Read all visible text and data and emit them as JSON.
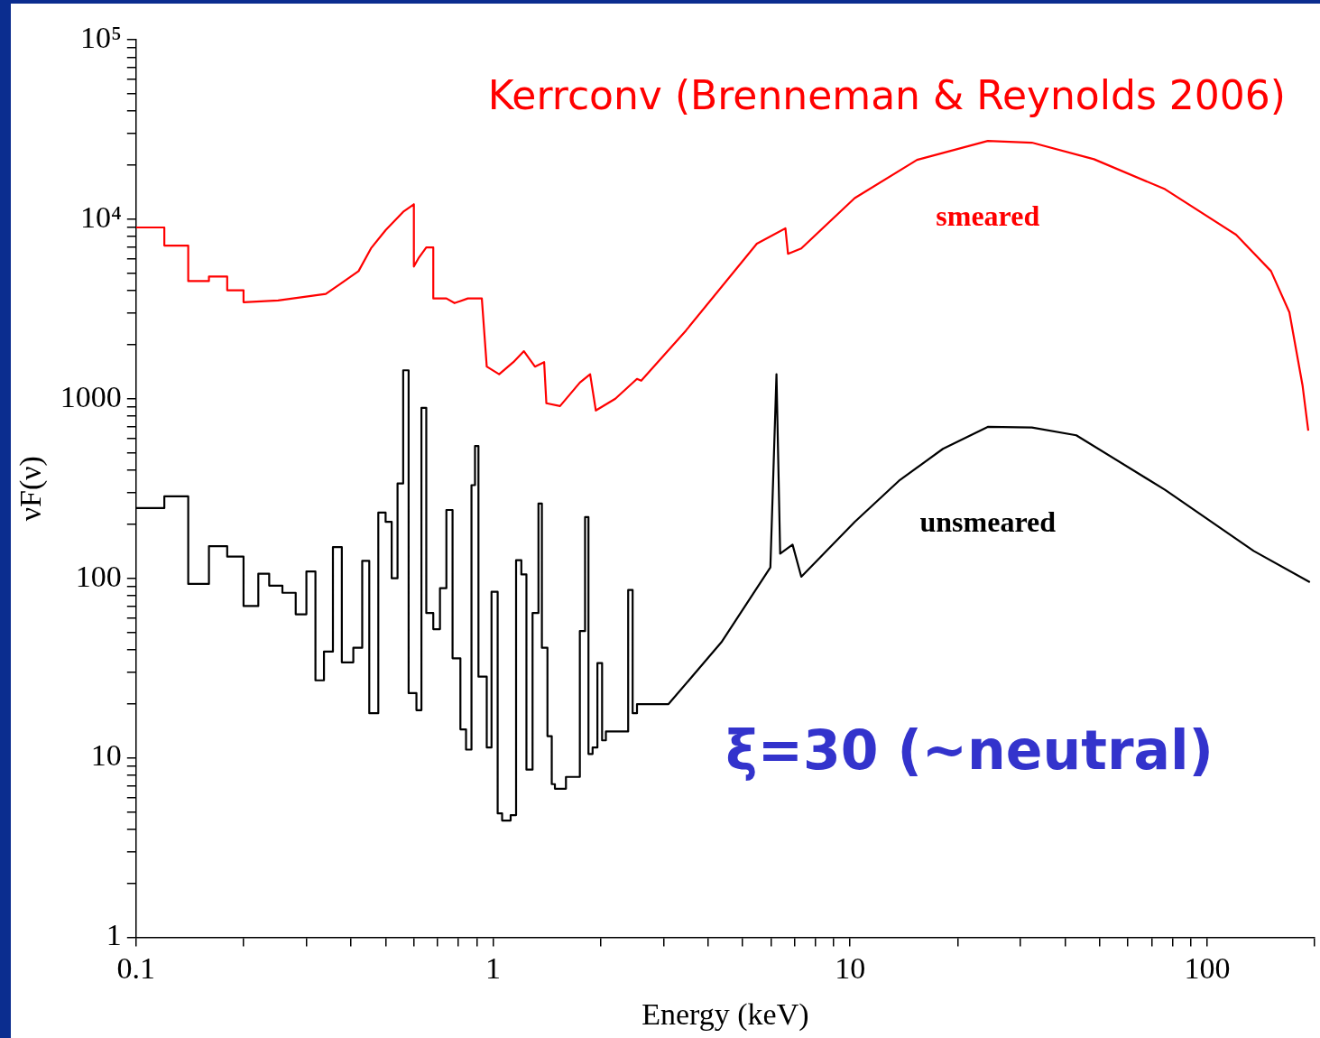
{
  "chart_data": {
    "type": "line",
    "title": "Kerrconv (Brenneman & Reynolds 2006)",
    "xlabel": "Energy (keV)",
    "ylabel": "νF(ν)",
    "annotations": [
      "ξ=30 (~neutral)"
    ],
    "log": "xy",
    "grid": false,
    "legend": false,
    "marker": "none",
    "line_style": "solid",
    "xlim": [
      0.1,
      200
    ],
    "ylim": [
      1,
      100000
    ],
    "xticks": [
      0.1,
      {
        "value": 0.2,
        "label": null
      },
      {
        "value": 0.3,
        "label": null
      },
      {
        "value": 0.4,
        "label": null
      },
      {
        "value": 0.5,
        "label": null
      },
      {
        "value": 0.6,
        "label": null
      },
      {
        "value": 0.7,
        "label": null
      },
      {
        "value": 0.8,
        "label": null
      },
      {
        "value": 0.9,
        "label": null
      },
      1,
      {
        "value": 2,
        "label": null
      },
      {
        "value": 3,
        "label": null
      },
      {
        "value": 4,
        "label": null
      },
      {
        "value": 5,
        "label": null
      },
      {
        "value": 6,
        "label": null
      },
      {
        "value": 7,
        "label": null
      },
      {
        "value": 8,
        "label": null
      },
      {
        "value": 9,
        "label": null
      },
      10,
      {
        "value": 20,
        "label": null
      },
      {
        "value": 30,
        "label": null
      },
      {
        "value": 40,
        "label": null
      },
      {
        "value": 50,
        "label": null
      },
      {
        "value": 60,
        "label": null
      },
      {
        "value": 70,
        "label": null
      },
      {
        "value": 80,
        "label": null
      },
      {
        "value": 90,
        "label": null
      },
      100,
      {
        "value": 200,
        "label": null
      }
    ],
    "yticks": [
      1,
      {
        "value": 2,
        "label": null
      },
      {
        "value": 3,
        "label": null
      },
      {
        "value": 4,
        "label": null
      },
      {
        "value": 5,
        "label": null
      },
      {
        "value": 6,
        "label": null
      },
      {
        "value": 7,
        "label": null
      },
      {
        "value": 8,
        "label": null
      },
      {
        "value": 9,
        "label": null
      },
      10,
      {
        "value": 20,
        "label": null
      },
      {
        "value": 30,
        "label": null
      },
      {
        "value": 40,
        "label": null
      },
      {
        "value": 50,
        "label": null
      },
      {
        "value": 60,
        "label": null
      },
      {
        "value": 70,
        "label": null
      },
      {
        "value": 80,
        "label": null
      },
      {
        "value": 90,
        "label": null
      },
      100,
      {
        "value": 200,
        "label": null
      },
      {
        "value": 300,
        "label": null
      },
      {
        "value": 400,
        "label": null
      },
      {
        "value": 500,
        "label": null
      },
      {
        "value": 600,
        "label": null
      },
      {
        "value": 700,
        "label": null
      },
      {
        "value": 800,
        "label": null
      },
      {
        "value": 900,
        "label": null
      },
      1000,
      {
        "value": 2000,
        "label": null
      },
      {
        "value": 3000,
        "label": null
      },
      {
        "value": 4000,
        "label": null
      },
      {
        "value": 5000,
        "label": null
      },
      {
        "value": 6000,
        "label": null
      },
      {
        "value": 7000,
        "label": null
      },
      {
        "value": 8000,
        "label": null
      },
      {
        "value": 9000,
        "label": null
      },
      {
        "value": 10000,
        "label": "10⁴"
      },
      {
        "value": 20000,
        "label": null
      },
      {
        "value": 30000,
        "label": null
      },
      {
        "value": 40000,
        "label": null
      },
      {
        "value": 50000,
        "label": null
      },
      {
        "value": 60000,
        "label": null
      },
      {
        "value": 70000,
        "label": null
      },
      {
        "value": 80000,
        "label": null
      },
      {
        "value": 90000,
        "label": null
      },
      {
        "value": 100000,
        "label": "10⁵"
      }
    ],
    "series": [
      {
        "name": "smeared",
        "color": "#ff0000",
        "x": [
          0.1,
          0.12,
          0.12,
          0.14,
          0.14,
          0.16,
          0.16,
          0.18,
          0.18,
          0.2,
          0.2,
          0.25,
          0.34,
          0.37,
          0.42,
          0.455,
          0.5,
          0.56,
          0.6,
          0.6,
          0.62,
          0.65,
          0.68,
          0.68,
          0.74,
          0.78,
          0.85,
          0.93,
          0.96,
          1.04,
          1.14,
          1.22,
          1.31,
          1.39,
          1.41,
          1.54,
          1.75,
          1.87,
          1.94,
          2.2,
          2.53,
          2.6,
          3.47,
          5.48,
          6.59,
          6.7,
          7.3,
          10.3,
          15.4,
          24.3,
          32.3,
          48.2,
          76.2,
          120.5,
          151,
          170,
          185,
          192
        ],
        "values": [
          9000,
          9000,
          7130,
          7130,
          4520,
          4520,
          4790,
          4790,
          4020,
          4020,
          3450,
          3530,
          3840,
          4310,
          5140,
          6880,
          8690,
          11000,
          12100,
          5450,
          6120,
          6960,
          6960,
          3620,
          3620,
          3410,
          3620,
          3620,
          1510,
          1370,
          1600,
          1840,
          1510,
          1600,
          944,
          910,
          1230,
          1370,
          860,
          1000,
          1290,
          1260,
          2400,
          7300,
          8900,
          6420,
          6880,
          13100,
          21400,
          27300,
          26700,
          21600,
          14700,
          8200,
          5140,
          3030,
          1190,
          664
        ]
      },
      {
        "name": "unsmeared",
        "color": "#000000",
        "x": [
          0.1,
          0.12,
          0.12,
          0.14,
          0.14,
          0.16,
          0.16,
          0.18,
          0.18,
          0.2,
          0.2,
          0.22,
          0.22,
          0.236,
          0.236,
          0.257,
          0.257,
          0.28,
          0.28,
          0.3,
          0.3,
          0.318,
          0.318,
          0.336,
          0.336,
          0.356,
          0.356,
          0.377,
          0.377,
          0.406,
          0.406,
          0.43,
          0.43,
          0.45,
          0.45,
          0.477,
          0.477,
          0.5,
          0.5,
          0.52,
          0.52,
          0.54,
          0.54,
          0.56,
          0.56,
          0.58,
          0.58,
          0.61,
          0.61,
          0.63,
          0.63,
          0.65,
          0.65,
          0.68,
          0.68,
          0.71,
          0.71,
          0.74,
          0.74,
          0.77,
          0.77,
          0.81,
          0.81,
          0.84,
          0.84,
          0.87,
          0.87,
          0.89,
          0.89,
          0.91,
          0.91,
          0.96,
          0.96,
          0.99,
          0.99,
          1.03,
          1.03,
          1.06,
          1.06,
          1.12,
          1.12,
          1.16,
          1.16,
          1.2,
          1.2,
          1.24,
          1.24,
          1.29,
          1.29,
          1.34,
          1.34,
          1.37,
          1.37,
          1.42,
          1.42,
          1.46,
          1.46,
          1.49,
          1.49,
          1.6,
          1.6,
          1.75,
          1.75,
          1.81,
          1.81,
          1.85,
          1.85,
          1.9,
          1.9,
          1.96,
          1.96,
          2.02,
          2.02,
          2.07,
          2.07,
          2.39,
          2.39,
          2.46,
          2.46,
          2.53,
          2.53,
          3.1,
          4.36,
          5.98,
          6.22,
          6.37,
          6.9,
          7.3,
          10.3,
          13.7,
          18.2,
          24.3,
          32.3,
          43,
          76.2,
          135,
          194
        ],
        "values": [
          246,
          246,
          286,
          286,
          93,
          93,
          151,
          151,
          132,
          132,
          70,
          70,
          106,
          106,
          91,
          91,
          83,
          83,
          63,
          63,
          109,
          109,
          27,
          27,
          39,
          39,
          149,
          149,
          34,
          34,
          41,
          41,
          125,
          125,
          17.7,
          17.7,
          232,
          232,
          206,
          206,
          100,
          100,
          337,
          337,
          1440,
          1440,
          22.9,
          22.9,
          18.4,
          18.4,
          890,
          890,
          64,
          64,
          52,
          52,
          88,
          88,
          240,
          240,
          35.8,
          35.8,
          14.4,
          14.4,
          11.1,
          11.1,
          330,
          330,
          545,
          545,
          28.3,
          28.3,
          11.4,
          11.4,
          84,
          84,
          4.9,
          4.9,
          4.47,
          4.47,
          4.79,
          4.79,
          126,
          126,
          105,
          105,
          8.59,
          8.59,
          64,
          64,
          261,
          261,
          41,
          41,
          13.2,
          13.2,
          7.13,
          7.13,
          6.72,
          6.72,
          7.82,
          7.82,
          50.8,
          50.8,
          219,
          219,
          10.5,
          10.5,
          11.4,
          11.4,
          33.7,
          33.7,
          12.5,
          12.5,
          14,
          14,
          86,
          86,
          17.7,
          17.7,
          19.9,
          19.9,
          44,
          115,
          1370,
          137,
          154,
          102,
          206,
          349,
          526,
          697,
          691,
          626,
          311,
          142,
          95
        ]
      }
    ]
  }
}
